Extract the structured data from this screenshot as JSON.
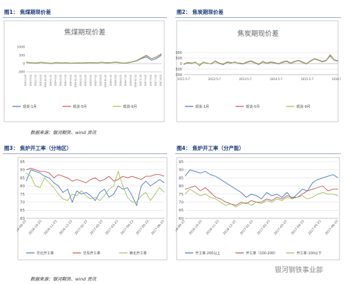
{
  "captions": {
    "fig1": "图1： 焦煤期现价差",
    "fig2": "图2： 焦炭期现价差",
    "fig3": "图3： 焦炉开工率（分地区）",
    "fig4": "图4： 焦炉开工率（分产能）"
  },
  "sources": {
    "top": "数据来源：银河期货、wind 资讯",
    "bottom": "数据来源：银河期货、wind 资讯"
  },
  "watermark": "银河钢铁事业部",
  "chart_data": [
    {
      "id": "c1",
      "type": "line",
      "title": "焦煤期现价差",
      "yticks": [
        "1000",
        "500",
        "0",
        "-500"
      ],
      "ylim": [
        -500,
        1000
      ],
      "xticks": [
        "2013-3-22",
        "2013-5-22",
        "2013-7-22",
        "2013-9-22",
        "2013-11-22",
        "2014-1-22",
        "2014-3-22",
        "2014-5-22",
        "2014-7-22",
        "2014-9-22",
        "2014-11-22",
        "2015-1-22",
        "2015-3-22",
        "2015-5-22",
        "2015-7-22",
        "2015-9-22",
        "2015-11-22",
        "2016-1-22",
        "2016-3-22",
        "2016-5-22",
        "2016-7-22",
        "2016-9-22",
        "2016-11-22",
        "2017-1-22",
        "2017-3-22",
        "2017-5-22",
        "2017-7-22",
        "2017-9-22"
      ],
      "colors": [
        "#4472c4",
        "#c0504d",
        "#9bbb59"
      ],
      "series": [
        {
          "name": "现货-1月",
          "values": [
            60,
            40,
            20,
            60,
            30,
            0,
            50,
            20,
            40,
            10,
            30,
            20,
            40,
            50,
            30,
            60,
            40,
            50,
            70,
            30,
            20,
            80,
            150,
            300,
            400,
            200,
            300,
            500
          ]
        },
        {
          "name": "现货-5月",
          "values": [
            80,
            60,
            40,
            80,
            50,
            20,
            70,
            40,
            60,
            30,
            50,
            40,
            60,
            70,
            50,
            80,
            60,
            70,
            90,
            50,
            40,
            100,
            180,
            350,
            500,
            300,
            400,
            600
          ]
        },
        {
          "name": "现货-9月",
          "values": [
            70,
            50,
            30,
            70,
            40,
            10,
            60,
            30,
            50,
            20,
            40,
            30,
            50,
            60,
            40,
            70,
            50,
            60,
            80,
            40,
            30,
            90,
            160,
            330,
            470,
            280,
            380,
            560
          ]
        }
      ]
    },
    {
      "id": "c2",
      "type": "line",
      "title": "焦炭期现价差",
      "yticks": [
        "1000",
        "500",
        "0",
        "-500",
        "-1000"
      ],
      "ylim": [
        -1000,
        1000
      ],
      "xticks": [
        "2011-5-7",
        "2012-5-7",
        "2013-5-7",
        "2014-5-7",
        "2015-5-7",
        "2016-5-7"
      ],
      "colors": [
        "#4472c4",
        "#c0504d",
        "#9bbb59"
      ],
      "series": [
        {
          "name": "现货-1月",
          "values": [
            -100,
            50,
            0,
            150,
            -200,
            100,
            50,
            -50,
            200,
            0,
            -100,
            100,
            50,
            150,
            0,
            -50,
            100,
            200,
            50,
            -100,
            150,
            0,
            100,
            50,
            -50,
            100,
            200,
            0,
            150,
            250,
            100,
            -50,
            200,
            400,
            300,
            150,
            250,
            700,
            300,
            200
          ]
        },
        {
          "name": "现货-5月",
          "values": [
            -50,
            100,
            50,
            100,
            -150,
            150,
            0,
            0,
            250,
            50,
            -50,
            150,
            100,
            100,
            50,
            0,
            150,
            250,
            100,
            -50,
            200,
            50,
            150,
            100,
            0,
            150,
            250,
            50,
            200,
            300,
            150,
            0,
            250,
            450,
            350,
            200,
            300,
            800,
            350,
            250
          ]
        },
        {
          "name": "现货-9月",
          "values": [
            -80,
            70,
            20,
            120,
            -180,
            120,
            30,
            -30,
            220,
            20,
            -80,
            120,
            70,
            120,
            20,
            -30,
            120,
            220,
            70,
            -80,
            170,
            20,
            120,
            70,
            -30,
            120,
            220,
            20,
            170,
            270,
            120,
            -30,
            220,
            420,
            320,
            170,
            270,
            750,
            320,
            220
          ]
        }
      ]
    },
    {
      "id": "c3",
      "type": "line",
      "title": "",
      "ylim": [
        60,
        95
      ],
      "yticks": [
        "95",
        "90",
        "85",
        "80",
        "75",
        "70",
        "65",
        "60"
      ],
      "xticks": [
        "2016-09-23",
        "2016-10-23",
        "2016-11-23",
        "2016-12-23",
        "2017-01-23",
        "2017-02-23",
        "2017-03-23",
        "2017-04-23",
        "2017-05-23",
        "2017-06-23"
      ],
      "colors": [
        "#4472c4",
        "#c0504d",
        "#9bbb59"
      ],
      "series": [
        {
          "name": "华北开工率",
          "values": [
            83,
            90,
            89,
            88,
            86,
            85,
            82,
            80,
            76,
            78,
            70,
            77,
            75,
            76,
            74,
            71,
            76,
            78,
            73,
            75,
            80,
            78,
            79,
            74,
            68,
            80,
            83,
            80,
            82,
            84,
            82
          ]
        },
        {
          "name": "华东开工率",
          "values": [
            90,
            91,
            90,
            89,
            89,
            88,
            85,
            87,
            86,
            85,
            83,
            84,
            83,
            82,
            84,
            85,
            83,
            84,
            86,
            83,
            84,
            86,
            85,
            86,
            85,
            84,
            86,
            86,
            87,
            87,
            86
          ]
        },
        {
          "name": "西北开工率",
          "values": [
            88,
            86,
            80,
            79,
            85,
            82,
            79,
            75,
            72,
            71,
            75,
            74,
            77,
            74,
            72,
            73,
            71,
            74,
            78,
            80,
            89,
            80,
            73,
            70,
            70,
            74,
            76,
            71,
            75,
            79,
            76
          ]
        }
      ]
    },
    {
      "id": "c4",
      "type": "line",
      "title": "",
      "ylim": [
        60,
        95
      ],
      "yticks": [
        "95",
        "90",
        "85",
        "80",
        "75",
        "70",
        "65",
        "60"
      ],
      "xticks": [
        "2016-09-23",
        "2016-10-23",
        "2016-11-23",
        "2016-12-23",
        "2017-01-23",
        "2017-02-23",
        "2017-03-23",
        "2017-04-23",
        "2017-05-23",
        "2017-06-23"
      ],
      "colors": [
        "#4472c4",
        "#c0504d",
        "#9bbb59"
      ],
      "series": [
        {
          "name": "开工率-200以上",
          "values": [
            86,
            90,
            89,
            88,
            89,
            87,
            86,
            84,
            82,
            80,
            78,
            76,
            73,
            75,
            74,
            72,
            76,
            74,
            75,
            73,
            76,
            72,
            75,
            78,
            77,
            82,
            84,
            85,
            86,
            87,
            85
          ]
        },
        {
          "name": "开工率（100-200）",
          "values": [
            78,
            79,
            80,
            77,
            79,
            76,
            73,
            72,
            70,
            69,
            68,
            70,
            69,
            71,
            70,
            70,
            72,
            71,
            73,
            72,
            74,
            73,
            73,
            75,
            77,
            78,
            79,
            80,
            77,
            78,
            78
          ]
        },
        {
          "name": "开工率-100以下",
          "values": [
            75,
            78,
            76,
            74,
            75,
            73,
            72,
            70,
            68,
            69,
            67,
            69,
            70,
            68,
            70,
            69,
            71,
            70,
            72,
            71,
            73,
            72,
            73,
            74,
            72,
            73,
            75,
            76,
            75,
            75,
            74
          ]
        }
      ]
    }
  ]
}
